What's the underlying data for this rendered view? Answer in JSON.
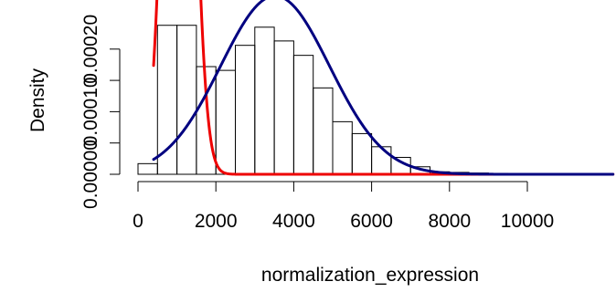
{
  "chart_data": {
    "type": "histogram",
    "title": "",
    "xlabel": "normalization_expression",
    "ylabel": "Density",
    "xlim": [
      0,
      12200
    ],
    "ylim": [
      0,
      0.00024
    ],
    "x_ticks": [
      0,
      2000,
      4000,
      6000,
      8000,
      10000
    ],
    "x_tick_labels": [
      "0",
      "2000",
      "4000",
      "6000",
      "8000",
      "10000"
    ],
    "y_ticks": [
      0,
      5e-05,
      0.0001,
      0.00015,
      0.0002
    ],
    "y_tick_labels": [
      "0.00000",
      "",
      "0.00010",
      "",
      "0.00020"
    ],
    "grid": false,
    "bins": [
      {
        "start": 0,
        "end": 500,
        "density": 1.7e-05
      },
      {
        "start": 500,
        "end": 1000,
        "density": 0.000238
      },
      {
        "start": 1000,
        "end": 1500,
        "density": 0.000238
      },
      {
        "start": 1500,
        "end": 2000,
        "density": 0.000172
      },
      {
        "start": 2000,
        "end": 2500,
        "density": 0.000166
      },
      {
        "start": 2500,
        "end": 3000,
        "density": 0.000206
      },
      {
        "start": 3000,
        "end": 3500,
        "density": 0.000235
      },
      {
        "start": 3500,
        "end": 4000,
        "density": 0.000213
      },
      {
        "start": 4000,
        "end": 4500,
        "density": 0.00019
      },
      {
        "start": 4500,
        "end": 5000,
        "density": 0.000138
      },
      {
        "start": 5000,
        "end": 5500,
        "density": 8.4e-05
      },
      {
        "start": 5500,
        "end": 6000,
        "density": 6.5e-05
      },
      {
        "start": 6000,
        "end": 6500,
        "density": 4.4e-05
      },
      {
        "start": 6500,
        "end": 7000,
        "density": 2.7e-05
      },
      {
        "start": 7000,
        "end": 7500,
        "density": 1.2e-05
      },
      {
        "start": 7500,
        "end": 8000,
        "density": 4e-06
      },
      {
        "start": 8000,
        "end": 8500,
        "density": 3e-06
      },
      {
        "start": 8500,
        "end": 9000,
        "density": 2e-06
      },
      {
        "start": 9000,
        "end": 9500,
        "density": 1.5e-06
      },
      {
        "start": 9500,
        "end": 10000,
        "density": 1.2e-06
      },
      {
        "start": 10000,
        "end": 10500,
        "density": 1e-06
      },
      {
        "start": 10500,
        "end": 11000,
        "density": 8e-07
      },
      {
        "start": 11000,
        "end": 11500,
        "density": 6e-07
      },
      {
        "start": 11500,
        "end": 12000,
        "density": 5e-07
      }
    ],
    "curves": [
      {
        "kind": "normal-density",
        "color": "#ee0000",
        "mean": 1050,
        "sd": 330,
        "x_range": [
          400,
          12200
        ]
      },
      {
        "kind": "normal-density",
        "color": "#000080",
        "mean": 3520,
        "sd": 1400,
        "x_range": [
          400,
          12200
        ]
      }
    ]
  }
}
